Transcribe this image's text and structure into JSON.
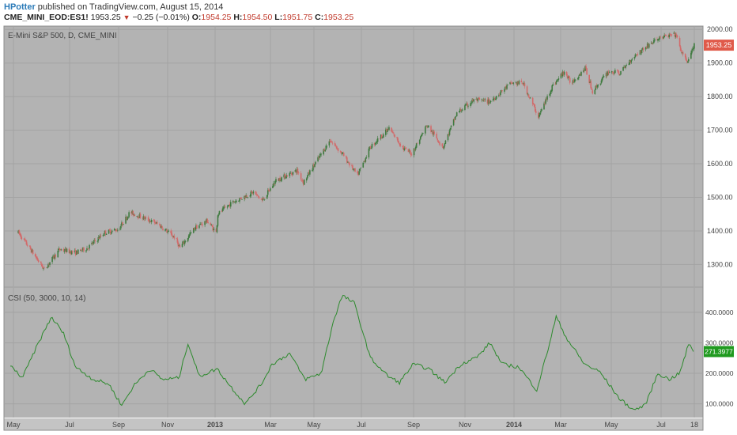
{
  "header": {
    "author": "HPotter",
    "published": "published on TradingView.com, August 15, 2014",
    "symbol": "CME_MINI_EOD:ES1!",
    "last": "1953.25",
    "change": "−0.25 (−0.01%)",
    "open_label": "O:",
    "open": "1954.25",
    "high_label": "H:",
    "high": "1954.50",
    "low_label": "L:",
    "low": "1951.75",
    "close_label": "C:",
    "close": "1953.25"
  },
  "colors": {
    "panel_bg": "#b3b3b3",
    "grid": "#a3a3a3",
    "up_candle": "#3f7a3f",
    "down_candle": "#d26a6a",
    "indicator_line": "#2d8a2d",
    "price_badge": "#e05a4a",
    "indicator_badge": "#1f9a1f"
  },
  "chart_data": [
    {
      "type": "candlestick",
      "title": "E-Mini S&P 500, D, CME_MINI",
      "x_ticks": [
        "May",
        "Jul",
        "Sep",
        "Nov",
        "2013",
        "Mar",
        "May",
        "Jul",
        "Sep",
        "Nov",
        "2014",
        "Mar",
        "May",
        "Jul",
        "18"
      ],
      "y_ticks": [
        "1300.00",
        "1400.00",
        "1500.00",
        "1600.00",
        "1700.00",
        "1800.00",
        "1900.00",
        "2000.00"
      ],
      "ylim": [
        1235,
        2010
      ],
      "last_value_label": "1953.25",
      "anchors": [
        {
          "x": "2012-04-30",
          "y": 1395
        },
        {
          "x": "2012-05-15",
          "y": 1345
        },
        {
          "x": "2012-06-01",
          "y": 1285
        },
        {
          "x": "2012-06-20",
          "y": 1345
        },
        {
          "x": "2012-07-10",
          "y": 1335
        },
        {
          "x": "2012-07-25",
          "y": 1350
        },
        {
          "x": "2012-08-15",
          "y": 1395
        },
        {
          "x": "2012-09-01",
          "y": 1405
        },
        {
          "x": "2012-09-15",
          "y": 1455
        },
        {
          "x": "2012-10-01",
          "y": 1440
        },
        {
          "x": "2012-10-20",
          "y": 1420
        },
        {
          "x": "2012-11-10",
          "y": 1380
        },
        {
          "x": "2012-11-16",
          "y": 1350
        },
        {
          "x": "2012-12-05",
          "y": 1410
        },
        {
          "x": "2012-12-20",
          "y": 1430
        },
        {
          "x": "2012-12-31",
          "y": 1395
        },
        {
          "x": "2013-01-02",
          "y": 1450
        },
        {
          "x": "2013-01-20",
          "y": 1485
        },
        {
          "x": "2013-02-15",
          "y": 1515
        },
        {
          "x": "2013-02-26",
          "y": 1490
        },
        {
          "x": "2013-03-15",
          "y": 1550
        },
        {
          "x": "2013-04-10",
          "y": 1580
        },
        {
          "x": "2013-04-18",
          "y": 1545
        },
        {
          "x": "2013-05-01",
          "y": 1595
        },
        {
          "x": "2013-05-21",
          "y": 1670
        },
        {
          "x": "2013-06-05",
          "y": 1630
        },
        {
          "x": "2013-06-24",
          "y": 1565
        },
        {
          "x": "2013-07-10",
          "y": 1650
        },
        {
          "x": "2013-08-02",
          "y": 1705
        },
        {
          "x": "2013-08-20",
          "y": 1645
        },
        {
          "x": "2013-08-30",
          "y": 1630
        },
        {
          "x": "2013-09-18",
          "y": 1715
        },
        {
          "x": "2013-10-08",
          "y": 1650
        },
        {
          "x": "2013-10-25",
          "y": 1750
        },
        {
          "x": "2013-11-15",
          "y": 1790
        },
        {
          "x": "2013-12-05",
          "y": 1785
        },
        {
          "x": "2013-12-31",
          "y": 1840
        },
        {
          "x": "2014-01-15",
          "y": 1840
        },
        {
          "x": "2014-02-03",
          "y": 1740
        },
        {
          "x": "2014-02-20",
          "y": 1830
        },
        {
          "x": "2014-03-07",
          "y": 1875
        },
        {
          "x": "2014-03-15",
          "y": 1840
        },
        {
          "x": "2014-04-02",
          "y": 1885
        },
        {
          "x": "2014-04-11",
          "y": 1815
        },
        {
          "x": "2014-05-01",
          "y": 1875
        },
        {
          "x": "2014-05-15",
          "y": 1870
        },
        {
          "x": "2014-06-01",
          "y": 1920
        },
        {
          "x": "2014-06-20",
          "y": 1955
        },
        {
          "x": "2014-07-03",
          "y": 1975
        },
        {
          "x": "2014-07-23",
          "y": 1985
        },
        {
          "x": "2014-08-01",
          "y": 1920
        },
        {
          "x": "2014-08-07",
          "y": 1905
        },
        {
          "x": "2014-08-15",
          "y": 1953
        }
      ]
    },
    {
      "type": "line",
      "title": "CSI (50, 3000, 10, 14)",
      "x_ticks": [
        "May",
        "Jul",
        "Sep",
        "Nov",
        "2013",
        "Mar",
        "May",
        "Jul",
        "Sep",
        "Nov",
        "2014",
        "Mar",
        "May",
        "Jul",
        "18"
      ],
      "y_ticks": [
        "100.0000",
        "200.0000",
        "300.0000",
        "400.0000"
      ],
      "ylim": [
        55,
        480
      ],
      "last_value_label": "271.3977",
      "anchors": [
        {
          "x": "2012-04-20",
          "y": 225
        },
        {
          "x": "2012-05-05",
          "y": 185
        },
        {
          "x": "2012-05-25",
          "y": 300
        },
        {
          "x": "2012-06-10",
          "y": 385
        },
        {
          "x": "2012-06-25",
          "y": 330
        },
        {
          "x": "2012-07-10",
          "y": 220
        },
        {
          "x": "2012-08-01",
          "y": 180
        },
        {
          "x": "2012-08-20",
          "y": 165
        },
        {
          "x": "2012-09-05",
          "y": 95
        },
        {
          "x": "2012-09-20",
          "y": 160
        },
        {
          "x": "2012-10-10",
          "y": 215
        },
        {
          "x": "2012-10-25",
          "y": 180
        },
        {
          "x": "2012-11-15",
          "y": 185
        },
        {
          "x": "2012-11-26",
          "y": 300
        },
        {
          "x": "2012-12-10",
          "y": 190
        },
        {
          "x": "2013-01-01",
          "y": 215
        },
        {
          "x": "2013-01-20",
          "y": 150
        },
        {
          "x": "2013-02-05",
          "y": 100
        },
        {
          "x": "2013-02-25",
          "y": 165
        },
        {
          "x": "2013-03-10",
          "y": 230
        },
        {
          "x": "2013-04-01",
          "y": 265
        },
        {
          "x": "2013-04-20",
          "y": 180
        },
        {
          "x": "2013-05-10",
          "y": 200
        },
        {
          "x": "2013-05-25",
          "y": 370
        },
        {
          "x": "2013-06-05",
          "y": 455
        },
        {
          "x": "2013-06-20",
          "y": 430
        },
        {
          "x": "2013-07-10",
          "y": 250
        },
        {
          "x": "2013-08-01",
          "y": 190
        },
        {
          "x": "2013-08-15",
          "y": 170
        },
        {
          "x": "2013-09-01",
          "y": 230
        },
        {
          "x": "2013-09-20",
          "y": 215
        },
        {
          "x": "2013-10-10",
          "y": 170
        },
        {
          "x": "2013-10-30",
          "y": 230
        },
        {
          "x": "2013-11-20",
          "y": 255
        },
        {
          "x": "2013-12-05",
          "y": 300
        },
        {
          "x": "2013-12-20",
          "y": 230
        },
        {
          "x": "2014-01-10",
          "y": 220
        },
        {
          "x": "2014-02-01",
          "y": 145
        },
        {
          "x": "2014-02-15",
          "y": 280
        },
        {
          "x": "2014-02-25",
          "y": 385
        },
        {
          "x": "2014-03-10",
          "y": 315
        },
        {
          "x": "2014-04-01",
          "y": 230
        },
        {
          "x": "2014-04-20",
          "y": 205
        },
        {
          "x": "2014-05-15",
          "y": 115
        },
        {
          "x": "2014-06-01",
          "y": 80
        },
        {
          "x": "2014-06-15",
          "y": 95
        },
        {
          "x": "2014-07-01",
          "y": 200
        },
        {
          "x": "2014-07-15",
          "y": 180
        },
        {
          "x": "2014-07-28",
          "y": 200
        },
        {
          "x": "2014-08-08",
          "y": 295
        },
        {
          "x": "2014-08-15",
          "y": 271
        }
      ]
    }
  ]
}
